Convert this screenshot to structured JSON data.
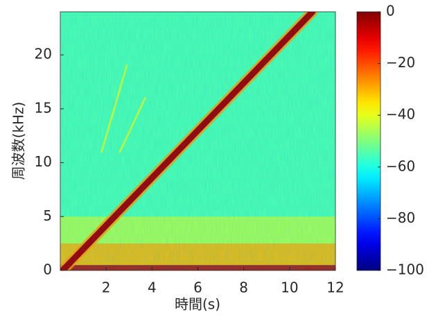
{
  "chart_data": {
    "type": "spectrogram",
    "xlabel": "時間(s)",
    "ylabel": "周波数(kHz)",
    "xlim": [
      0,
      12
    ],
    "xticks": [
      2,
      4,
      6,
      8,
      10,
      12
    ],
    "ylim": [
      0,
      24
    ],
    "yticks": [
      0,
      5,
      10,
      15,
      20
    ],
    "colormap": "jet",
    "clim": [
      -100,
      0
    ],
    "cticks": [
      0,
      {
        "value": -20,
        "label": "−20"
      },
      {
        "value": -40,
        "label": "−40"
      },
      {
        "value": -60,
        "label": "−60"
      },
      {
        "value": -80,
        "label": "−80"
      },
      {
        "value": -100,
        "label": "−100"
      }
    ],
    "background_level": -55,
    "bands": [
      {
        "y": [
          2.5,
          5
        ],
        "level": -45
      },
      {
        "y": [
          0.5,
          2.5
        ],
        "level": -30
      },
      {
        "y": [
          0,
          0.5
        ],
        "level": -5
      }
    ],
    "lines": [
      {
        "x": [
          1.8,
          2.9
        ],
        "y": [
          11,
          19
        ],
        "level": -42
      },
      {
        "x": [
          2.6,
          3.7
        ],
        "y": [
          11,
          16
        ],
        "level": -42
      },
      {
        "x": [
          0.1,
          11
        ],
        "y": [
          0,
          24
        ],
        "level": -3
      }
    ]
  }
}
